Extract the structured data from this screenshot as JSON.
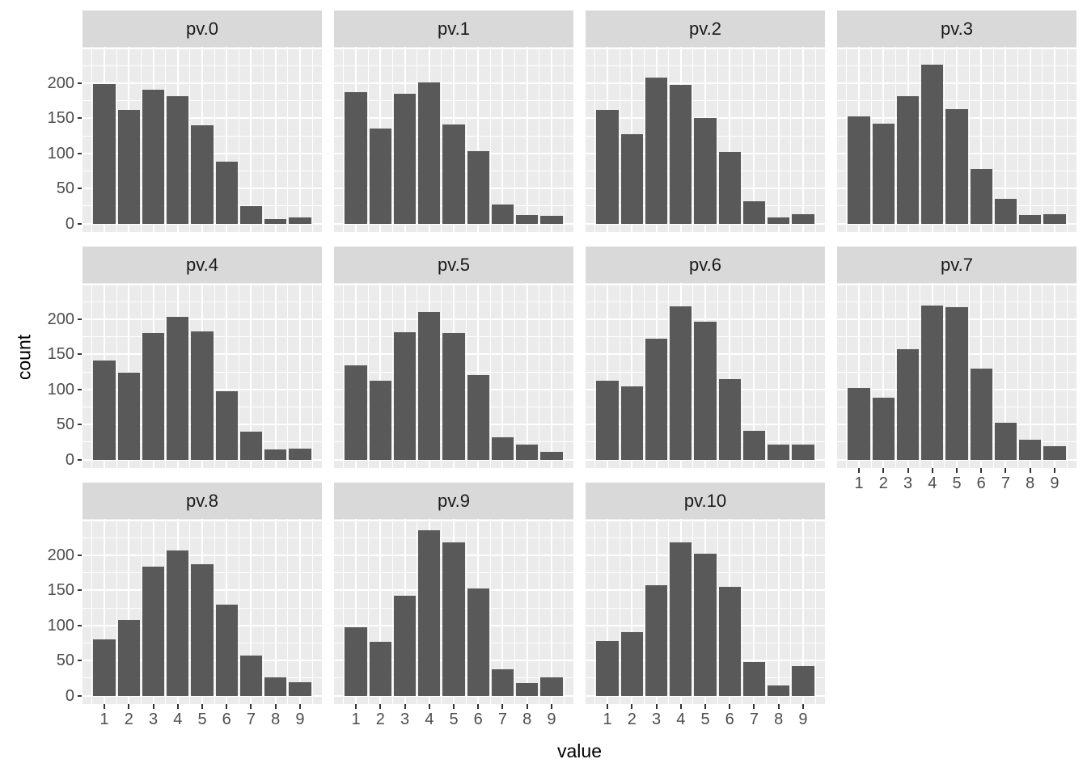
{
  "chart_data": {
    "type": "bar",
    "kind": "faceted-histogram-grid",
    "title": "",
    "xlabel": "value",
    "ylabel": "count",
    "x": [
      1,
      2,
      3,
      4,
      5,
      6,
      7,
      8,
      9
    ],
    "facets": [
      {
        "label": "pv.0",
        "values": [
          199,
          162,
          191,
          182,
          140,
          88,
          25,
          7,
          9
        ]
      },
      {
        "label": "pv.1",
        "values": [
          187,
          136,
          185,
          201,
          141,
          103,
          27,
          12,
          11
        ]
      },
      {
        "label": "pv.2",
        "values": [
          162,
          128,
          208,
          198,
          150,
          102,
          32,
          9,
          13
        ]
      },
      {
        "label": "pv.3",
        "values": [
          153,
          142,
          182,
          227,
          163,
          78,
          35,
          12,
          13
        ]
      },
      {
        "label": "pv.4",
        "values": [
          141,
          124,
          180,
          204,
          183,
          98,
          40,
          15,
          16
        ]
      },
      {
        "label": "pv.5",
        "values": [
          134,
          112,
          182,
          211,
          180,
          121,
          32,
          21,
          11
        ]
      },
      {
        "label": "pv.6",
        "values": [
          113,
          104,
          173,
          218,
          197,
          115,
          41,
          22,
          21
        ]
      },
      {
        "label": "pv.7",
        "values": [
          102,
          88,
          158,
          220,
          217,
          130,
          52,
          28,
          19
        ]
      },
      {
        "label": "pv.8",
        "values": [
          80,
          108,
          184,
          207,
          188,
          130,
          57,
          26,
          19
        ]
      },
      {
        "label": "pv.9",
        "values": [
          97,
          77,
          142,
          236,
          218,
          153,
          38,
          18,
          26
        ]
      },
      {
        "label": "pv.10",
        "values": [
          78,
          91,
          157,
          219,
          202,
          155,
          48,
          15,
          42
        ]
      }
    ],
    "ncol": 4,
    "y_tick_labels": [
      0,
      50,
      100,
      150,
      200
    ],
    "y_major_grid": [
      0,
      50,
      100,
      150,
      200,
      250
    ],
    "y_minor_grid": [
      25,
      75,
      125,
      175,
      225
    ],
    "x_major_grid": [
      1,
      2,
      3,
      4,
      5,
      6,
      7,
      8,
      9
    ],
    "x_minor_grid": [
      0.5,
      1.5,
      2.5,
      3.5,
      4.5,
      5.5,
      6.5,
      7.5,
      8.5,
      9.5
    ],
    "ylim": [
      -12,
      252
    ],
    "xlim": [
      0.105,
      9.895
    ],
    "bar_width": 0.9,
    "grid": true,
    "legend": "none",
    "colors": {
      "bar": "#595959",
      "panel_background": "#EBEBEB",
      "strip_background": "#D9D9D9",
      "gridline": "#FFFFFF",
      "axis_text": "#4D4D4D",
      "axis_title": "#000000",
      "tick_mark": "#333333"
    }
  }
}
